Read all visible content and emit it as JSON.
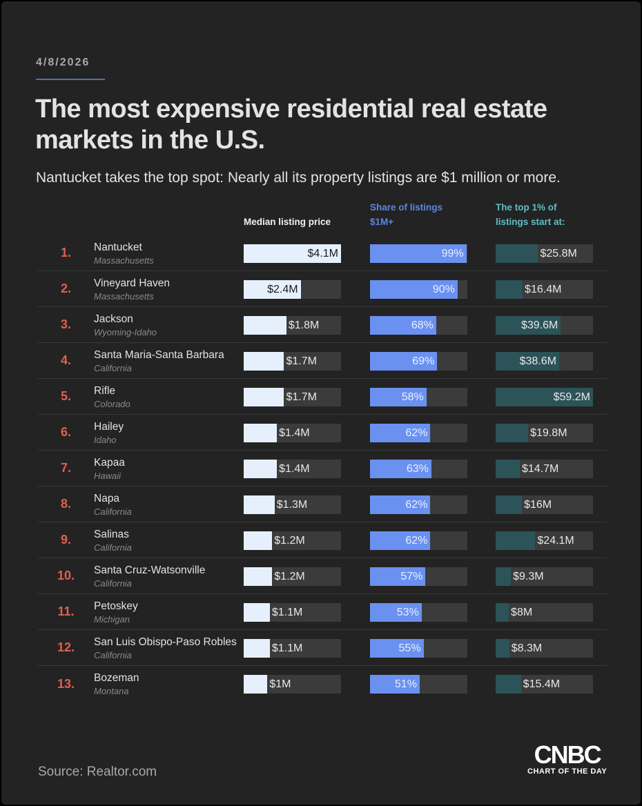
{
  "date": "4/8/2026",
  "title": "The most expensive residential real estate markets in the U.S.",
  "subtitle": "Nantucket takes the top spot: Nearly all its property listings are $1 million or more.",
  "source": "Source: Realtor.com",
  "logo": {
    "brand": "CNBC",
    "tagline": "CHART OF THE DAY"
  },
  "colors": {
    "median": "#e6f0fd",
    "share": "#6a91f0",
    "top1": "#2c5358",
    "rank": "#e0604f",
    "track": "#3b3b3b"
  },
  "chart_data": {
    "type": "table",
    "columns": [
      "Median listing price",
      "Share of listings $1M+",
      "The top 1% of listings start at:"
    ],
    "column_units": [
      "$M",
      "%",
      "$M"
    ],
    "rows": [
      {
        "rank": "1.",
        "name": "Nantucket",
        "state": "Massachusetts",
        "median": 4.1,
        "median_label": "$4.1M",
        "share": 99,
        "share_label": "99%",
        "top1": 25.8,
        "top1_label": "$25.8M"
      },
      {
        "rank": "2.",
        "name": "Vineyard Haven",
        "state": "Massachusetts",
        "median": 2.4,
        "median_label": "$2.4M",
        "share": 90,
        "share_label": "90%",
        "top1": 16.4,
        "top1_label": "$16.4M"
      },
      {
        "rank": "3.",
        "name": "Jackson",
        "state": "Wyoming-Idaho",
        "median": 1.8,
        "median_label": "$1.8M",
        "share": 68,
        "share_label": "68%",
        "top1": 39.6,
        "top1_label": "$39.6M"
      },
      {
        "rank": "4.",
        "name": "Santa Maria-Santa Barbara",
        "state": "California",
        "median": 1.7,
        "median_label": "$1.7M",
        "share": 69,
        "share_label": "69%",
        "top1": 38.6,
        "top1_label": "$38.6M"
      },
      {
        "rank": "5.",
        "name": "Rifle",
        "state": "Colorado",
        "median": 1.7,
        "median_label": "$1.7M",
        "share": 58,
        "share_label": "58%",
        "top1": 59.2,
        "top1_label": "$59.2M"
      },
      {
        "rank": "6.",
        "name": "Hailey",
        "state": "Idaho",
        "median": 1.4,
        "median_label": "$1.4M",
        "share": 62,
        "share_label": "62%",
        "top1": 19.8,
        "top1_label": "$19.8M"
      },
      {
        "rank": "7.",
        "name": "Kapaa",
        "state": "Hawaii",
        "median": 1.4,
        "median_label": "$1.4M",
        "share": 63,
        "share_label": "63%",
        "top1": 14.7,
        "top1_label": "$14.7M"
      },
      {
        "rank": "8.",
        "name": "Napa",
        "state": "California",
        "median": 1.3,
        "median_label": "$1.3M",
        "share": 62,
        "share_label": "62%",
        "top1": 16,
        "top1_label": "$16M"
      },
      {
        "rank": "9.",
        "name": "Salinas",
        "state": "California",
        "median": 1.2,
        "median_label": "$1.2M",
        "share": 62,
        "share_label": "62%",
        "top1": 24.1,
        "top1_label": "$24.1M"
      },
      {
        "rank": "10.",
        "name": "Santa Cruz-Watsonville",
        "state": "California",
        "median": 1.2,
        "median_label": "$1.2M",
        "share": 57,
        "share_label": "57%",
        "top1": 9.3,
        "top1_label": "$9.3M"
      },
      {
        "rank": "11.",
        "name": "Petoskey",
        "state": "Michigan",
        "median": 1.1,
        "median_label": "$1.1M",
        "share": 53,
        "share_label": "53%",
        "top1": 8,
        "top1_label": "$8M"
      },
      {
        "rank": "12.",
        "name": "San Luis Obispo-Paso Robles",
        "state": "California",
        "median": 1.1,
        "median_label": "$1.1M",
        "share": 55,
        "share_label": "55%",
        "top1": 8.3,
        "top1_label": "$8.3M"
      },
      {
        "rank": "13.",
        "name": "Bozeman",
        "state": "Montana",
        "median": 1,
        "median_label": "$1M",
        "share": 51,
        "share_label": "51%",
        "top1": 15.4,
        "top1_label": "$15.4M"
      }
    ]
  }
}
